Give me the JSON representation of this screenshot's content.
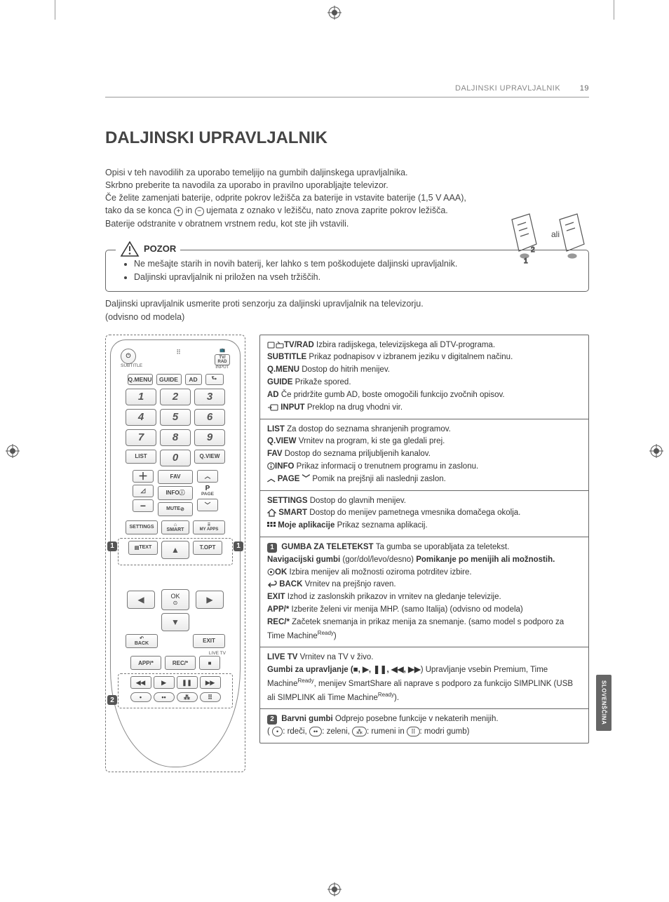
{
  "page": {
    "running_head": "DALJINSKI UPRAVLJALNIK",
    "page_number": "19",
    "title": "DALJINSKI UPRAVLJALNIK",
    "lang_tab": "SLOVENŠČINA"
  },
  "intro": {
    "p1": "Opisi v teh navodilih za uporabo temeljijo na gumbih daljinskega upravljalnika.",
    "p2": "Skrbno preberite ta navodila za uporabo in pravilno uporabljajte televizor.",
    "p3a": "Če želite zamenjati baterije, odprite pokrov ležišča za baterije in vstavite baterije (1,5 V AAA), tako da se konca ",
    "p3b": " in ",
    "p3c": " ujemata z oznako v ležišču, nato znova zaprite pokrov ležišča.",
    "p4": "Baterije odstranite v obratnem vrstnem redu, kot ste jih vstavili.",
    "or_label": "ali"
  },
  "caution": {
    "title": "POZOR",
    "items": [
      "Ne mešajte starih in novih baterij, ker lahko s tem poškodujete daljinski upravljalnik.",
      "Daljinski upravljalnik ni priložen na vseh tržiščih."
    ]
  },
  "after_caution": {
    "l1": "Daljinski upravljalnik usmerite proti senzorju za daljinski upravljalnik na televizorju.",
    "l2": "(odvisno od modela)"
  },
  "remote": {
    "top_labels": {
      "subtitle": "SUBTITLE",
      "tvrad": "TV/\nRAD",
      "input": "INPUT"
    },
    "row1": [
      "Q.MENU",
      "GUIDE",
      "AD"
    ],
    "nums": [
      "1",
      "2",
      "3",
      "4",
      "5",
      "6",
      "7",
      "8",
      "9"
    ],
    "list": "LIST",
    "zero": "0",
    "qview": "Q.VIEW",
    "fav": "FAV",
    "info": "INFO",
    "mute": "MUTE",
    "page_label": "P",
    "page_sub": "PAGE",
    "settings": "SETTINGS",
    "smart": "SMART",
    "myapps": "MY APPS",
    "text": "TEXT",
    "topt": "T.OPT",
    "ok": "OK",
    "back": "BACK",
    "exit": "EXIT",
    "livetv": "LIVE TV",
    "app": "APP/*",
    "rec": "REC/*"
  },
  "sections": [
    {
      "rows": [
        {
          "b": "TV/RAD ",
          "icon": "tv-radio",
          "t": " Izbira radijskega, televizijskega ali DTV-programa."
        },
        {
          "b": "SUBTITLE ",
          "t": "Prikaz podnapisov v izbranem jeziku v digitalnem načinu."
        },
        {
          "b": "Q.MENU ",
          "t": "Dostop do hitrih menijev."
        },
        {
          "b": "GUIDE ",
          "t": "Prikaže spored."
        },
        {
          "b": "AD ",
          "t": "Če pridržite gumb AD, boste omogočili funkcijo zvočnih opisov."
        },
        {
          "icon": "input",
          "b": " INPUT ",
          "t": "Preklop na drug vhodni vir."
        }
      ]
    },
    {
      "rows": [
        {
          "b": "LIST ",
          "t": "Za dostop do seznama shranjenih programov."
        },
        {
          "b": "Q.VIEW ",
          "t": "Vrnitev na program, ki ste ga gledali prej."
        },
        {
          "b": "FAV ",
          "t": "Dostop do seznama priljubljenih kanalov."
        },
        {
          "b": "INFO ",
          "icon": "info-circle",
          "t": " Prikaz informacij o trenutnem programu in zaslonu."
        },
        {
          "icon": "page-updown",
          "b": " PAGE ",
          "t": " Pomik na prejšnji ali naslednji zaslon."
        }
      ]
    },
    {
      "rows": [
        {
          "b": "SETTINGS ",
          "t": "Dostop do glavnih menijev."
        },
        {
          "icon": "home",
          "b": " SMART ",
          "t": "Dostop do menijev pametnega vmesnika domačega okolja."
        },
        {
          "icon": "grid",
          "b": " Moje aplikacije ",
          "t": "Prikaz seznama aplikacij."
        }
      ]
    },
    {
      "rows": [
        {
          "badge": "1",
          "b": " GUMBA ZA TELETEKST ",
          "t": "Ta gumba se uporabljata za teletekst."
        },
        {
          "b": "Navigacijski gumbi ",
          "t1": "(gor/dol/levo/desno) ",
          "b2": "Pomikanje po menijih ali možnostih."
        },
        {
          "b": "OK ",
          "icon": "target",
          "t": " Izbira menijev ali možnosti oziroma potrditev izbire."
        },
        {
          "icon": "back-arrow",
          "b": " BACK ",
          "t": "Vrnitev na prejšnjo raven."
        },
        {
          "b": "EXIT ",
          "t": " Izhod iz zaslonskih prikazov in vrnitev na gledanje televizije."
        },
        {
          "b": "APP/* ",
          "t": "Izberite želeni vir menija MHP. (samo Italija) (odvisno od modela)"
        },
        {
          "b": "REC/* ",
          "t": "Začetek snemanja in prikaz menija za snemanje. (samo model s podporo za Time Machine",
          "sup": "Ready",
          "t2": ")"
        }
      ]
    },
    {
      "rows": [
        {
          "b": "LIVE TV ",
          "t": "Vrnitev na TV v živo."
        },
        {
          "b": "Gumbi za upravljanje (",
          "icons": "playback",
          "t": ") Upravljanje vsebin Premium, Time Machine",
          "sup": "Ready",
          "t2": ", menijev SmartShare ali naprave s podporo za funkcijo SIMPLINK (USB ali SIMPLINK ali Time Machine",
          "sup2": "Ready",
          "t3": ")."
        }
      ]
    },
    {
      "rows": [
        {
          "badge": "2",
          "b": " Barvni gumbi ",
          "t": "Odprejo posebne funkcije v nekaterih menijih."
        },
        {
          "color_row": true,
          "red": ": rdeči, ",
          "green": ": zeleni, ",
          "yellow": ": rumeni in ",
          "blue": ": modri gumb)"
        }
      ]
    }
  ],
  "colors": {
    "text": "#333333",
    "muted": "#888888",
    "border": "#666666",
    "badge_bg": "#555555",
    "lang_tab_bg": "#666666"
  }
}
